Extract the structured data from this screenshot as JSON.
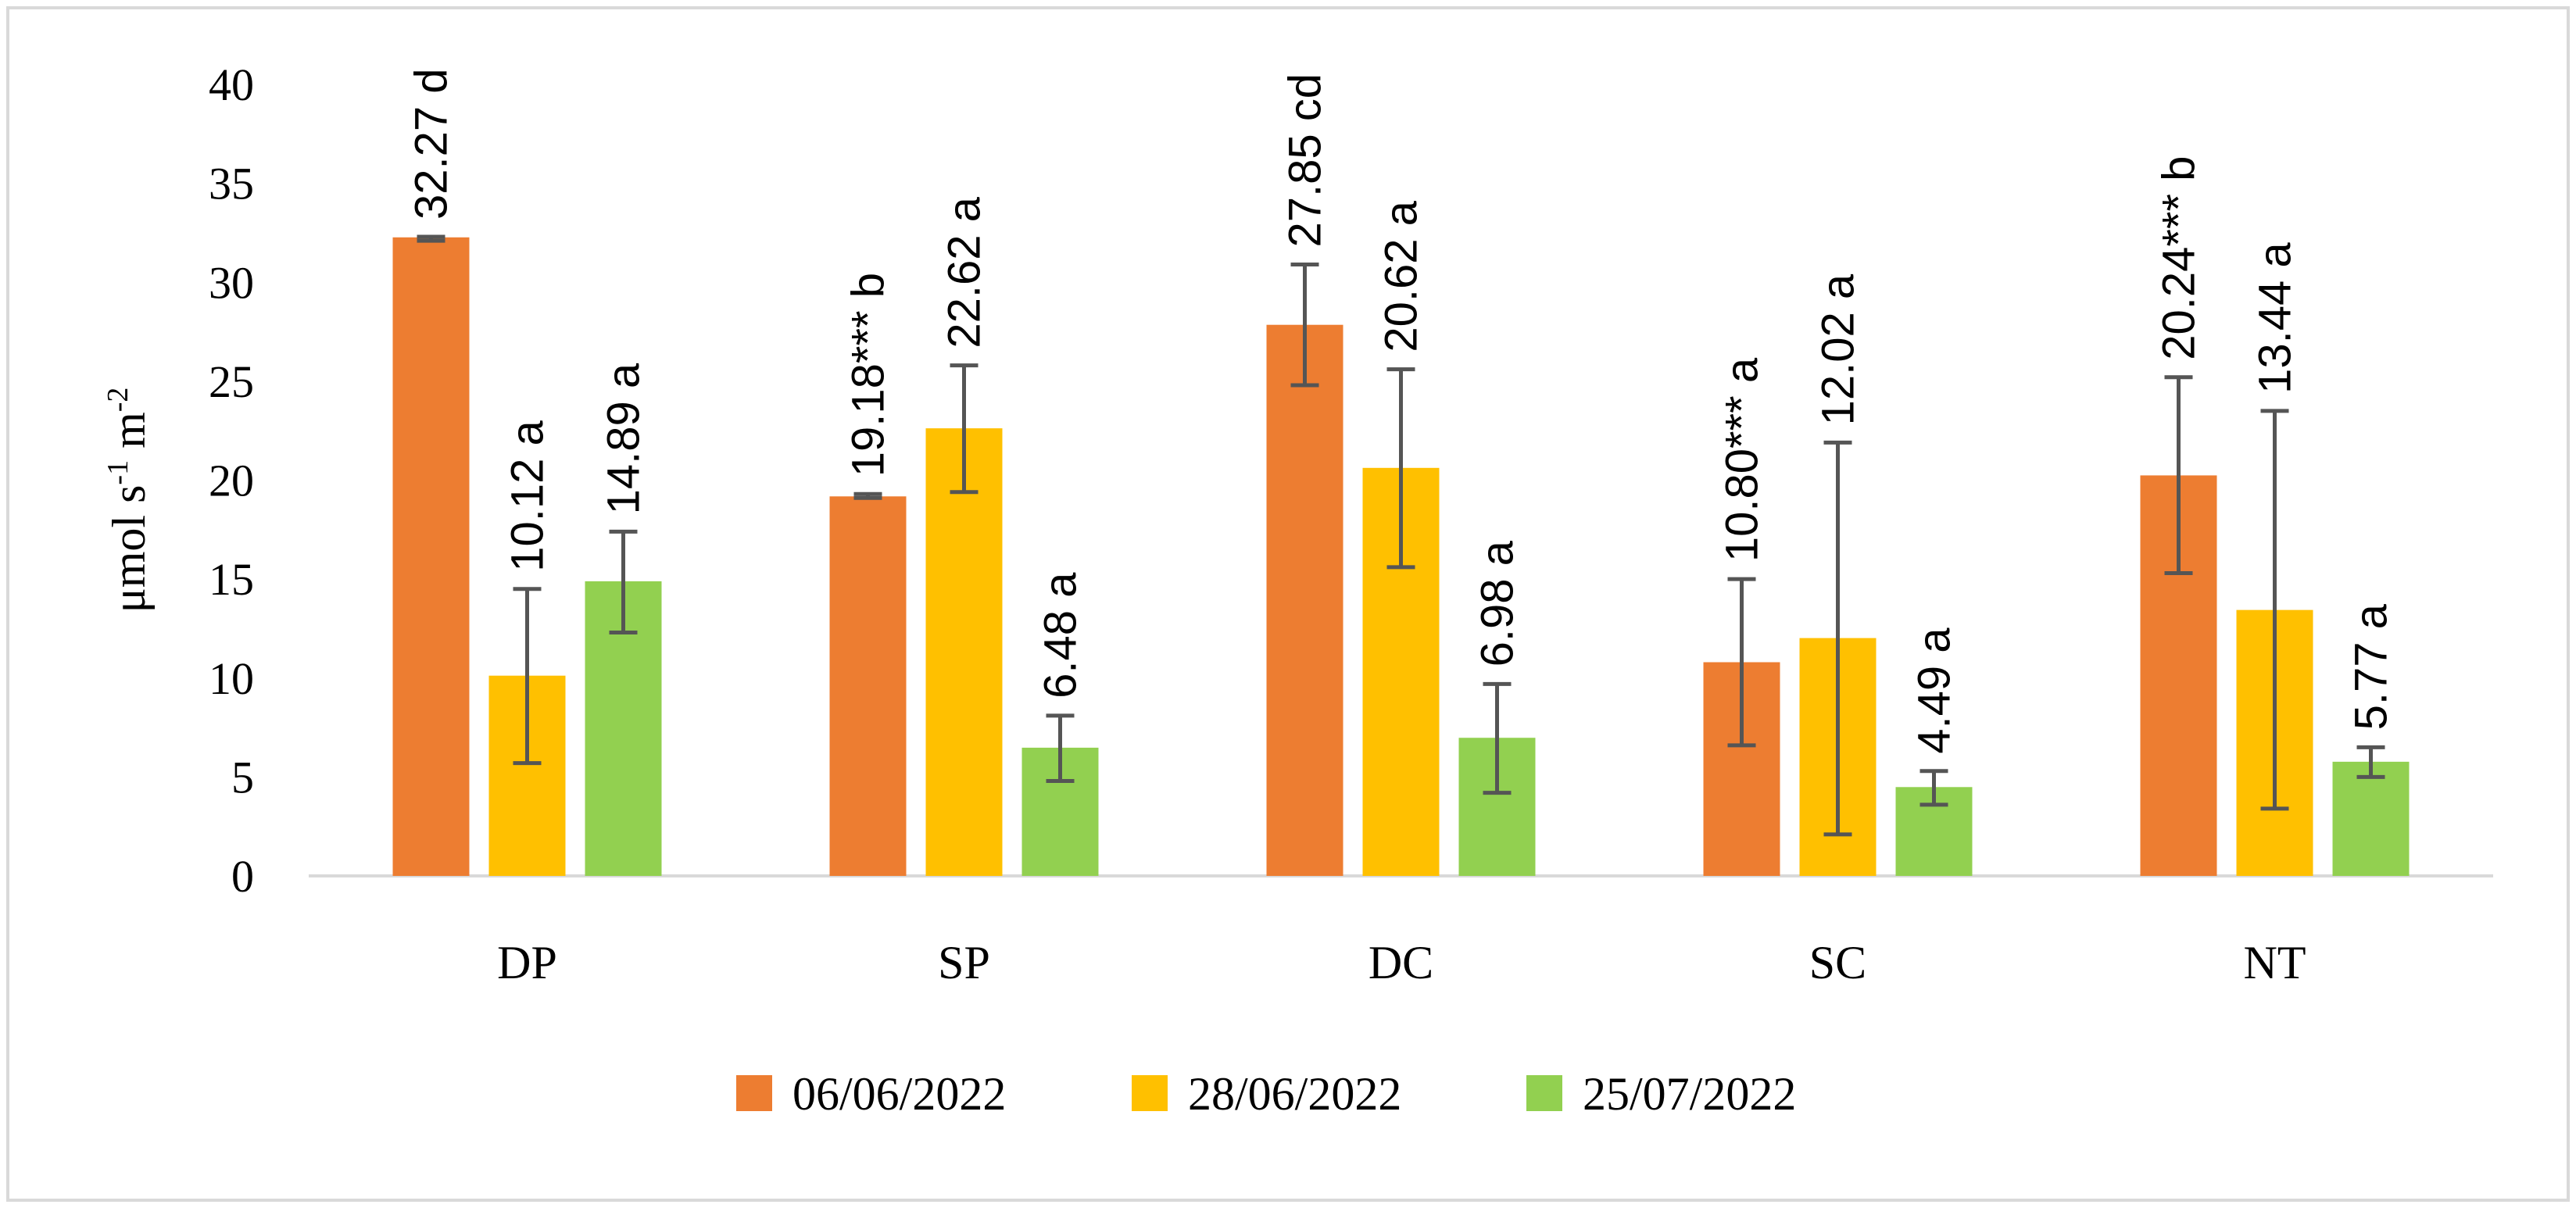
{
  "chart_data": {
    "type": "bar",
    "title": "",
    "xlabel": "",
    "ylabel": "μmol s-1 m-2",
    "ylabel_parts": {
      "base": "μmol s",
      "exp1": "-1",
      "mid": " m",
      "exp2": "-2"
    },
    "ylim": [
      0,
      40
    ],
    "yticks": [
      0,
      5,
      10,
      15,
      20,
      25,
      30,
      35,
      40
    ],
    "grid": false,
    "legend_position": "bottom",
    "categories": [
      "DP",
      "SP",
      "DC",
      "SC",
      "NT"
    ],
    "colors": {
      "06/06/2022": "#ED7D31",
      "28/06/2022": "#FFC000",
      "25/07/2022": "#92D050",
      "error_bar": "#555555",
      "axis": "#D9D9D9"
    },
    "series": [
      {
        "name": "06/06/2022",
        "values": [
          32.27,
          19.18,
          27.85,
          10.8,
          20.24
        ],
        "err_low": [
          32.1,
          19.1,
          24.8,
          6.6,
          15.3
        ],
        "err_high": [
          32.3,
          19.3,
          30.9,
          15.0,
          25.2
        ],
        "labels": [
          "32.27 d",
          "19.18*** b",
          "27.85 cd",
          "10.80*** a",
          "20.24*** b"
        ]
      },
      {
        "name": "28/06/2022",
        "values": [
          10.12,
          22.62,
          20.62,
          12.02,
          13.44
        ],
        "err_low": [
          5.7,
          19.4,
          15.6,
          2.1,
          3.4
        ],
        "err_high": [
          14.5,
          25.8,
          25.6,
          21.9,
          23.5
        ],
        "labels": [
          "10.12 a",
          "22.62 a",
          "20.62 a",
          "12.02 a",
          "13.44 a"
        ]
      },
      {
        "name": "25/07/2022",
        "values": [
          14.89,
          6.48,
          6.98,
          4.49,
          5.77
        ],
        "err_low": [
          12.3,
          4.8,
          4.2,
          3.6,
          5.0
        ],
        "err_high": [
          17.4,
          8.1,
          9.7,
          5.3,
          6.5
        ],
        "labels": [
          "14.89 a",
          "6.48 a",
          "6.98 a",
          "4.49 a",
          "5.77 a"
        ]
      }
    ]
  }
}
